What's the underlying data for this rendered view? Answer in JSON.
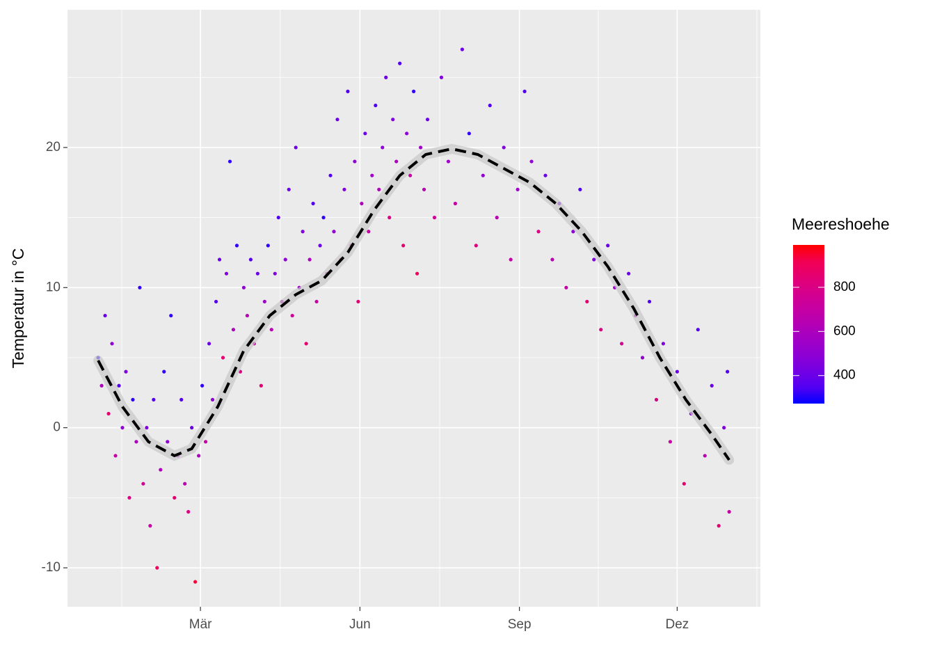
{
  "chart_data": {
    "type": "scatter",
    "y_label": "Temperatur in °C",
    "legend_title": "Meereshoehe",
    "xlim": [
      -16.7,
      383
    ],
    "ylim": [
      -12.78,
      29.83
    ],
    "xticks": [
      {
        "value": 60,
        "label": "Mär"
      },
      {
        "value": 152,
        "label": "Jun"
      },
      {
        "value": 244,
        "label": "Sep"
      },
      {
        "value": 335,
        "label": "Dez"
      }
    ],
    "xminorticks": [
      14.6,
      106,
      198,
      289.5,
      381
    ],
    "yticks": [
      -10,
      0,
      10,
      20
    ],
    "yminorticks": [
      -5,
      5,
      15,
      25
    ],
    "grid": true,
    "color_scale": {
      "low": "#0000ff",
      "high": "#ff0000",
      "lim": [
        273,
        992
      ],
      "ticks": [
        400,
        600,
        800
      ]
    },
    "points": {
      "x": [
        1,
        3,
        5,
        7,
        9,
        11,
        13,
        15,
        17,
        19,
        21,
        23,
        25,
        27,
        29,
        31,
        33,
        35,
        37,
        39,
        41,
        43,
        45,
        47,
        49,
        51,
        53,
        55,
        57,
        59,
        61,
        63,
        65,
        67,
        69,
        71,
        73,
        75,
        77,
        79,
        81,
        83,
        85,
        87,
        89,
        91,
        93,
        95,
        97,
        99,
        101,
        103,
        105,
        107,
        109,
        111,
        113,
        115,
        117,
        119,
        121,
        123,
        125,
        127,
        129,
        131,
        133,
        135,
        137,
        139,
        141,
        143,
        145,
        147,
        149,
        151,
        153,
        155,
        157,
        159,
        161,
        163,
        165,
        167,
        169,
        171,
        173,
        175,
        177,
        179,
        181,
        183,
        185,
        187,
        189,
        191,
        195,
        199,
        203,
        207,
        211,
        215,
        219,
        223,
        227,
        231,
        235,
        239,
        243,
        247,
        251,
        255,
        259,
        263,
        267,
        271,
        275,
        279,
        283,
        287,
        291,
        295,
        299,
        303,
        307,
        311,
        315,
        319,
        323,
        327,
        331,
        335,
        339,
        343,
        347,
        351,
        355,
        359,
        362,
        364,
        365
      ],
      "y": [
        5,
        3,
        8,
        1,
        6,
        -2,
        3,
        0,
        4,
        -5,
        2,
        -1,
        10,
        -4,
        0,
        -7,
        2,
        -10,
        -3,
        4,
        -1,
        8,
        -5,
        -2,
        2,
        -4,
        -6,
        0,
        -11,
        -2,
        3,
        -1,
        6,
        2,
        9,
        12,
        5,
        11,
        19,
        7,
        13,
        4,
        10,
        8,
        12,
        6,
        11,
        3,
        9,
        13,
        7,
        11,
        15,
        9,
        12,
        17,
        8,
        20,
        10,
        14,
        6,
        12,
        16,
        9,
        13,
        15,
        11,
        18,
        14,
        22,
        12,
        17,
        24,
        13,
        19,
        9,
        16,
        21,
        14,
        18,
        23,
        17,
        20,
        25,
        15,
        22,
        19,
        26,
        13,
        21,
        18,
        24,
        11,
        20,
        17,
        22,
        15,
        25,
        19,
        16,
        27,
        21,
        13,
        18,
        23,
        15,
        20,
        12,
        17,
        24,
        19,
        14,
        18,
        12,
        16,
        10,
        14,
        17,
        9,
        12,
        7,
        13,
        10,
        6,
        11,
        8,
        5,
        9,
        2,
        6,
        -1,
        4,
        -4,
        1,
        7,
        -2,
        3,
        -7,
        0,
        4,
        -6
      ],
      "elevation": [
        300,
        600,
        400,
        850,
        500,
        700,
        350,
        500,
        450,
        800,
        300,
        600,
        300,
        750,
        450,
        700,
        350,
        900,
        600,
        300,
        500,
        300,
        850,
        550,
        350,
        650,
        800,
        400,
        950,
        600,
        300,
        700,
        400,
        500,
        350,
        400,
        850,
        450,
        300,
        600,
        300,
        800,
        500,
        650,
        350,
        700,
        400,
        850,
        550,
        300,
        650,
        450,
        350,
        600,
        500,
        400,
        750,
        400,
        550,
        450,
        850,
        600,
        350,
        700,
        400,
        300,
        650,
        350,
        500,
        400,
        800,
        450,
        350,
        700,
        500,
        850,
        600,
        400,
        700,
        550,
        350,
        600,
        500,
        400,
        800,
        450,
        600,
        350,
        850,
        500,
        700,
        300,
        900,
        550,
        650,
        400,
        750,
        450,
        550,
        700,
        400,
        300,
        800,
        500,
        350,
        650,
        450,
        700,
        550,
        350,
        500,
        800,
        400,
        650,
        450,
        700,
        500,
        350,
        850,
        450,
        800,
        400,
        550,
        750,
        400,
        600,
        500,
        350,
        800,
        450,
        700,
        400,
        850,
        500,
        350,
        650,
        400,
        850,
        450,
        350,
        700
      ]
    },
    "trend": {
      "x": [
        1,
        15,
        30,
        45,
        55,
        70,
        85,
        100,
        115,
        130,
        145,
        160,
        175,
        190,
        205,
        220,
        235,
        250,
        265,
        280,
        295,
        310,
        325,
        340,
        355,
        365
      ],
      "y": [
        4.8,
        1.5,
        -1.0,
        -2.0,
        -1.5,
        1.5,
        5.5,
        8.0,
        9.5,
        10.5,
        12.5,
        15.5,
        18.0,
        19.5,
        19.9,
        19.5,
        18.5,
        17.5,
        16.0,
        14.0,
        11.5,
        8.5,
        5.0,
        2.0,
        -0.5,
        -2.3
      ],
      "color": "#000000",
      "ribbon": "#c8c8c8"
    }
  }
}
